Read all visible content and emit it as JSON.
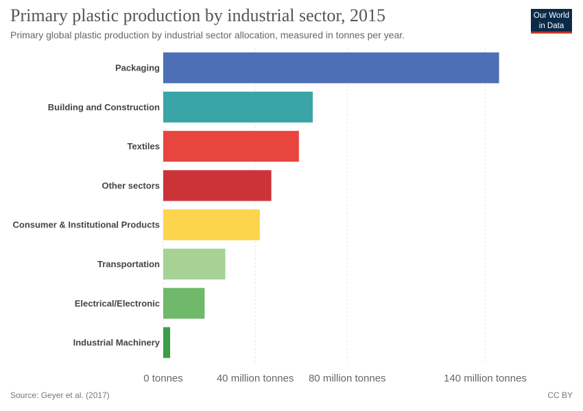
{
  "header": {
    "title": "Primary plastic production by industrial sector, 2015",
    "subtitle": "Primary global plastic production by industrial sector allocation, measured in tonnes per year.",
    "logo_line1": "Our World",
    "logo_line2": "in Data"
  },
  "footer": {
    "source": "Source: Geyer et al. (2017)",
    "license": "CC BY"
  },
  "chart_data": {
    "type": "bar",
    "orientation": "horizontal",
    "title": "Primary plastic production by industrial sector, 2015",
    "xlabel": "",
    "ylabel": "",
    "unit": "tonnes",
    "xlim": [
      0,
      150000000
    ],
    "grid": true,
    "categories": [
      "Packaging",
      "Building and Construction",
      "Textiles",
      "Other sectors",
      "Consumer & Institutional Products",
      "Transportation",
      "Electrical/Electronic",
      "Industrial Machinery"
    ],
    "values": [
      146000000,
      65000000,
      59000000,
      47000000,
      42000000,
      27000000,
      18000000,
      3000000
    ],
    "colors": [
      "#4c6fb5",
      "#3aa4a6",
      "#e8453f",
      "#cc3339",
      "#fdd44d",
      "#a6d395",
      "#70b86a",
      "#3a9e48"
    ],
    "ticks": [
      {
        "value": 0,
        "label": "0 tonnes"
      },
      {
        "value": 40000000,
        "label": "40 million tonnes"
      },
      {
        "value": 80000000,
        "label": "80 million tonnes"
      },
      {
        "value": 140000000,
        "label": "140 million tonnes"
      }
    ]
  }
}
